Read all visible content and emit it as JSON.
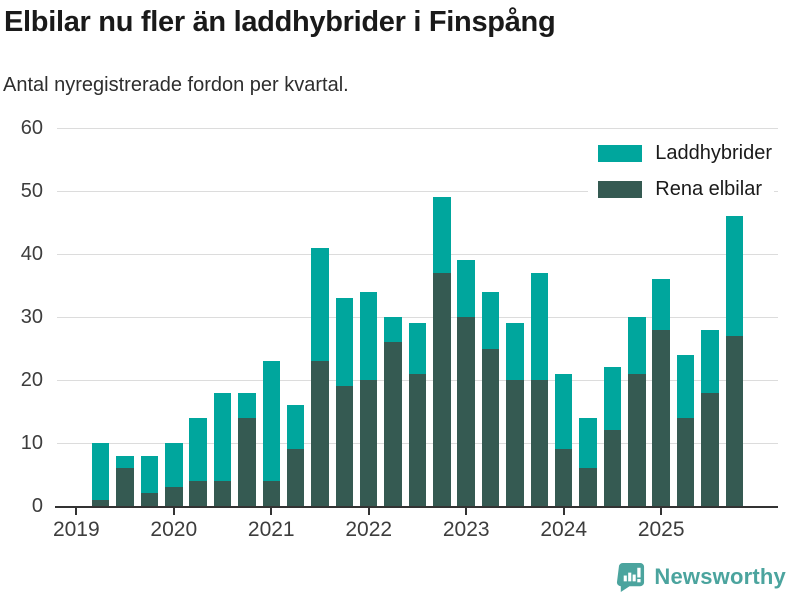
{
  "header": {
    "title": "Elbilar nu fler än laddhybrider i Finspång",
    "subtitle": "Antal nyregistrerade fordon per kvartal."
  },
  "legend": [
    {
      "label": "Laddhybrider",
      "color": "#00a69d"
    },
    {
      "label": "Rena elbilar",
      "color": "#355a52"
    }
  ],
  "footer": {
    "brand": "Newsworthy",
    "brand_color": "#4ba49e"
  },
  "colors": {
    "laddhybrider": "#00a69d",
    "rena_elbilar": "#355a52",
    "gridline": "#dcdcdc",
    "axis": "#333333"
  },
  "chart_data": {
    "type": "bar",
    "stacked": true,
    "title": "Elbilar nu fler än laddhybrider i Finspång",
    "subtitle": "Antal nyregistrerade fordon per kvartal.",
    "xlabel": "",
    "ylabel": "",
    "ylim": [
      0,
      60
    ],
    "yticks": [
      0,
      10,
      20,
      30,
      40,
      50,
      60
    ],
    "grid": true,
    "legend_position": "top-right",
    "x": [
      "2019 Q2",
      "2019 Q3",
      "2019 Q4",
      "2020 Q1",
      "2020 Q2",
      "2020 Q3",
      "2020 Q4",
      "2021 Q1",
      "2021 Q2",
      "2021 Q3",
      "2021 Q4",
      "2022 Q1",
      "2022 Q2",
      "2022 Q3",
      "2022 Q4",
      "2023 Q1",
      "2023 Q2",
      "2023 Q3",
      "2023 Q4",
      "2024 Q1",
      "2024 Q2",
      "2024 Q3",
      "2024 Q4",
      "2025 Q1",
      "2025 Q2",
      "2025 Q3",
      "2025 Q4"
    ],
    "year_ticks": [
      "2019",
      "2020",
      "2021",
      "2022",
      "2023",
      "2024",
      "2025"
    ],
    "series": [
      {
        "name": "Rena elbilar",
        "color": "#355a52",
        "values": [
          1,
          6,
          2,
          3,
          4,
          4,
          14,
          4,
          9,
          23,
          19,
          20,
          26,
          21,
          37,
          30,
          25,
          20,
          20,
          9,
          6,
          12,
          21,
          28,
          14,
          18,
          27
        ]
      },
      {
        "name": "Laddhybrider",
        "color": "#00a69d",
        "values": [
          9,
          2,
          6,
          7,
          10,
          14,
          4,
          19,
          7,
          18,
          14,
          14,
          4,
          8,
          12,
          9,
          9,
          9,
          17,
          12,
          8,
          10,
          9,
          8,
          10,
          10,
          19
        ]
      }
    ],
    "totals": [
      10,
      8,
      8,
      10,
      14,
      18,
      18,
      23,
      16,
      41,
      33,
      34,
      30,
      29,
      49,
      39,
      34,
      29,
      37,
      21,
      14,
      22,
      30,
      36,
      24,
      28,
      46
    ]
  }
}
